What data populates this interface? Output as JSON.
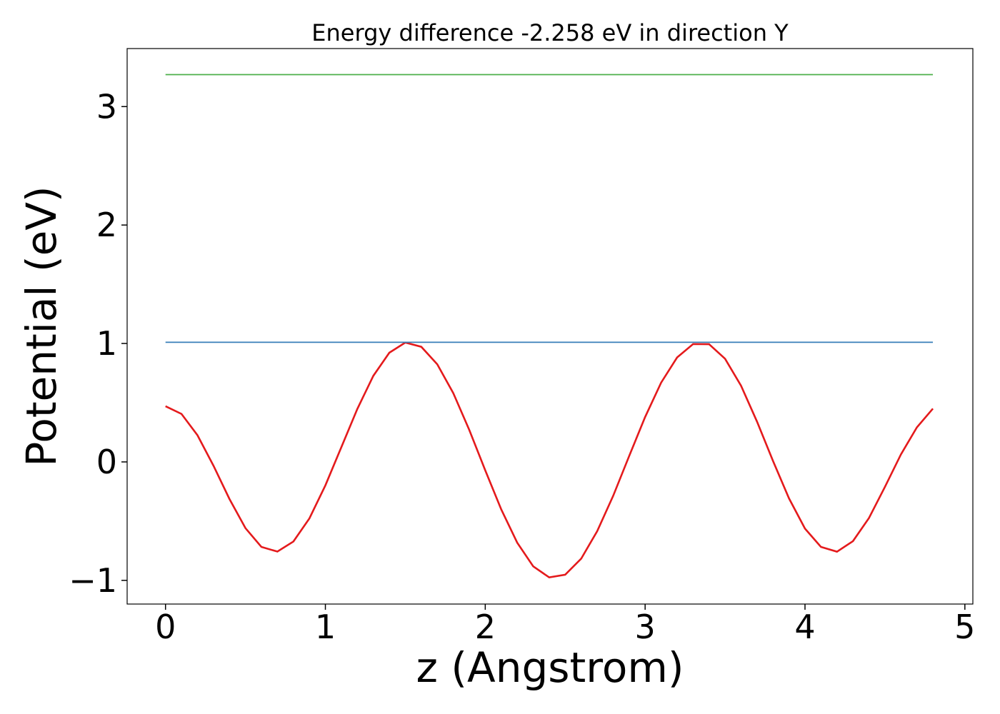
{
  "chart_data": {
    "type": "line",
    "title": "Energy difference -2.258 eV in direction Y",
    "xlabel": "z (Angstrom)",
    "ylabel": "Potential (eV)",
    "series": [
      {
        "color": "#e41a1c",
        "x": [
          0,
          0.1,
          0.2,
          0.3,
          0.4,
          0.5,
          0.6,
          0.7,
          0.8,
          0.9,
          1.0,
          1.1,
          1.2,
          1.3,
          1.4,
          1.5,
          1.6,
          1.7,
          1.8,
          1.9,
          2.0,
          2.1,
          2.2,
          2.3,
          2.4,
          2.5,
          2.6,
          2.7,
          2.8,
          2.9,
          3.0,
          3.1,
          3.2,
          3.3,
          3.4,
          3.5,
          3.6,
          3.7,
          3.8,
          3.9,
          4.0,
          4.1,
          4.2,
          4.3,
          4.4,
          4.5,
          4.6,
          4.7,
          4.8
        ],
        "values": [
          0.47,
          0.405,
          0.225,
          -0.032,
          -0.313,
          -0.559,
          -0.718,
          -0.757,
          -0.672,
          -0.477,
          -0.198,
          0.125,
          0.448,
          0.727,
          0.922,
          1.008,
          0.972,
          0.824,
          0.581,
          0.27,
          -0.071,
          -0.401,
          -0.682,
          -0.882,
          -0.975,
          -0.952,
          -0.817,
          -0.585,
          -0.287,
          0.049,
          0.379,
          0.669,
          0.882,
          0.995,
          0.994,
          0.871,
          0.643,
          0.34,
          0.008,
          -0.308,
          -0.563,
          -0.718,
          -0.758,
          -0.669,
          -0.474,
          -0.211,
          0.063,
          0.292,
          0.45
        ]
      },
      {
        "color": "#377eb8",
        "x": [
          0,
          4.8
        ],
        "values": [
          1.01,
          1.01
        ]
      },
      {
        "color": "#4daf4a",
        "x": [
          0,
          4.8
        ],
        "values": [
          3.27,
          3.27
        ]
      }
    ],
    "xlim": [
      -0.24,
      5.05
    ],
    "ylim": [
      -1.2,
      3.49
    ],
    "xticks": [
      0,
      1,
      2,
      3,
      4,
      5
    ],
    "yticks": [
      {
        "value": -1,
        "label": "−1"
      },
      0,
      1,
      2,
      3
    ],
    "grid": false
  }
}
